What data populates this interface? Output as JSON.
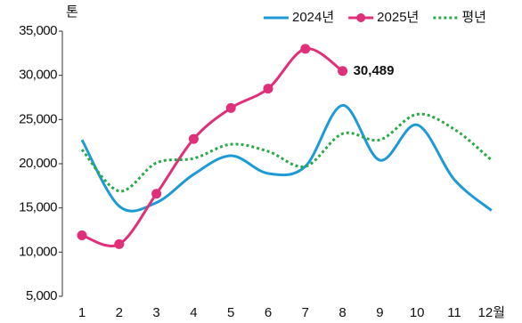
{
  "chart_data": {
    "type": "line",
    "y_unit": "톤",
    "categories": [
      "1",
      "2",
      "3",
      "4",
      "5",
      "6",
      "7",
      "8",
      "9",
      "10",
      "11",
      "12월"
    ],
    "series": [
      {
        "name": "2024년",
        "color": "#1e9bd7",
        "style": "solid",
        "markers": false,
        "values": [
          22700,
          15200,
          15600,
          18800,
          20900,
          18900,
          19700,
          26600,
          20400,
          24400,
          18200,
          14700
        ]
      },
      {
        "name": "2025년",
        "color": "#e0307a",
        "style": "solid",
        "markers": true,
        "values": [
          11900,
          10900,
          16600,
          22800,
          26300,
          28500,
          33000,
          30489,
          null,
          null,
          null,
          null
        ],
        "value_labels": [
          null,
          null,
          null,
          null,
          null,
          null,
          null,
          "30,489",
          null,
          null,
          null,
          null
        ]
      },
      {
        "name": "평년",
        "color": "#2aa84a",
        "style": "dotted",
        "markers": false,
        "values": [
          21600,
          16900,
          20100,
          20600,
          22200,
          21400,
          19700,
          23400,
          22700,
          25600,
          23900,
          20400
        ]
      }
    ],
    "ylim": [
      5000,
      35000
    ],
    "yticks": [
      {
        "value": 5000,
        "label": "5,000"
      },
      {
        "value": 10000,
        "label": "10,000"
      },
      {
        "value": 15000,
        "label": "15,000"
      },
      {
        "value": 20000,
        "label": "20,000"
      },
      {
        "value": 25000,
        "label": "25,000"
      },
      {
        "value": 30000,
        "label": "30,000"
      },
      {
        "value": 35000,
        "label": "35,000"
      }
    ],
    "grid": false,
    "legend": "top-right"
  }
}
